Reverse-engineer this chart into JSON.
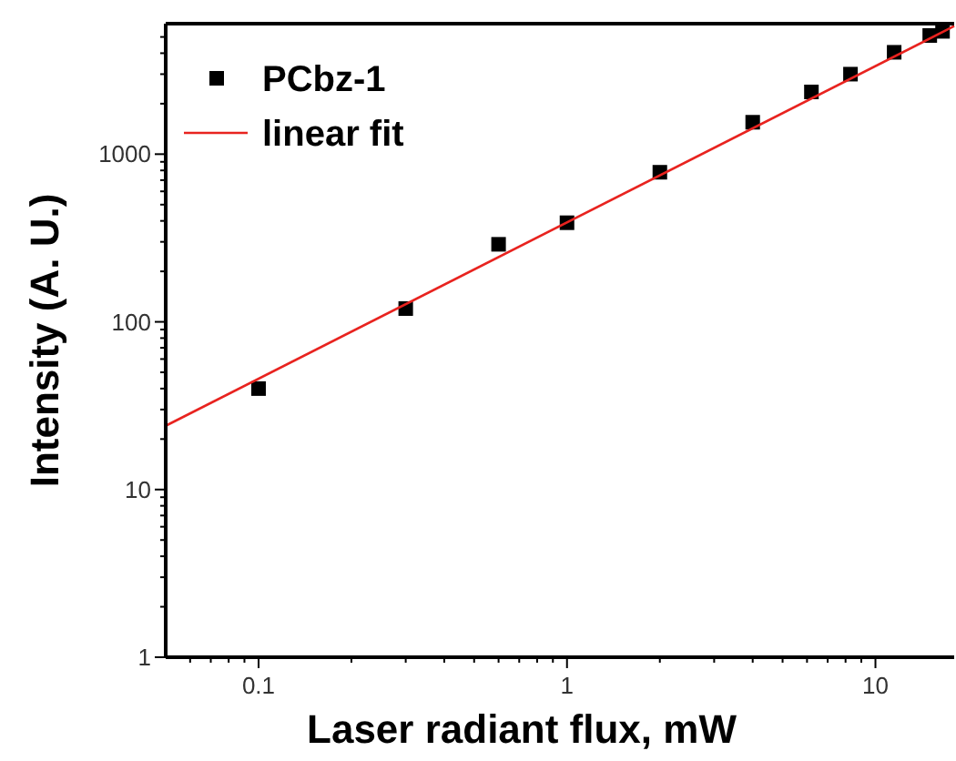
{
  "chart_data": {
    "type": "scatter",
    "xlabel": "Laser radiant flux, mW",
    "ylabel": "Intensity (A. U.)",
    "log": "xy",
    "legend": "top left",
    "grid": false,
    "marker": "square",
    "xlim": [
      0.05,
      18
    ],
    "ylim": [
      1,
      6000
    ],
    "xticks": [
      {
        "value": 0.06,
        "label": null
      },
      {
        "value": 0.07,
        "label": null
      },
      {
        "value": 0.08,
        "label": null
      },
      {
        "value": 0.09,
        "label": null
      },
      0.1,
      {
        "value": 0.2,
        "label": null
      },
      {
        "value": 0.3,
        "label": null
      },
      {
        "value": 0.4,
        "label": null
      },
      {
        "value": 0.5,
        "label": null
      },
      {
        "value": 0.6,
        "label": null
      },
      {
        "value": 0.7,
        "label": null
      },
      {
        "value": 0.8,
        "label": null
      },
      {
        "value": 0.9,
        "label": null
      },
      1,
      {
        "value": 2,
        "label": null
      },
      {
        "value": 3,
        "label": null
      },
      {
        "value": 4,
        "label": null
      },
      {
        "value": 5,
        "label": null
      },
      {
        "value": 6,
        "label": null
      },
      {
        "value": 7,
        "label": null
      },
      {
        "value": 8,
        "label": null
      },
      {
        "value": 9,
        "label": null
      },
      10
    ],
    "yticks": [
      1,
      {
        "value": 2,
        "label": null
      },
      {
        "value": 3,
        "label": null
      },
      {
        "value": 4,
        "label": null
      },
      {
        "value": 5,
        "label": null
      },
      {
        "value": 6,
        "label": null
      },
      {
        "value": 7,
        "label": null
      },
      {
        "value": 8,
        "label": null
      },
      {
        "value": 9,
        "label": null
      },
      10,
      {
        "value": 20,
        "label": null
      },
      {
        "value": 30,
        "label": null
      },
      {
        "value": 40,
        "label": null
      },
      {
        "value": 50,
        "label": null
      },
      {
        "value": 60,
        "label": null
      },
      {
        "value": 70,
        "label": null
      },
      {
        "value": 80,
        "label": null
      },
      {
        "value": 90,
        "label": null
      },
      100,
      {
        "value": 200,
        "label": null
      },
      {
        "value": 300,
        "label": null
      },
      {
        "value": 400,
        "label": null
      },
      {
        "value": 500,
        "label": null
      },
      {
        "value": 600,
        "label": null
      },
      {
        "value": 700,
        "label": null
      },
      {
        "value": 800,
        "label": null
      },
      {
        "value": 900,
        "label": null
      },
      1000,
      {
        "value": 2000,
        "label": null
      },
      {
        "value": 3000,
        "label": null
      },
      {
        "value": 4000,
        "label": null
      },
      {
        "value": 5000,
        "label": null
      }
    ],
    "series": [
      {
        "name": "PCbz-1",
        "color": "#000000",
        "x": [
          0.1,
          0.3,
          0.6,
          1,
          2,
          4,
          6.2,
          8.3,
          11.5,
          15,
          16.5
        ],
        "values": [
          40,
          120,
          290,
          390,
          780,
          1550,
          2350,
          3000,
          4050,
          5100,
          5400
        ]
      },
      {
        "name": "linear fit",
        "type": "line",
        "color": "#e8231f",
        "marker": "none",
        "line_style": "solid",
        "x": [
          0.05,
          18
        ],
        "values": [
          24,
          5800
        ]
      }
    ]
  }
}
